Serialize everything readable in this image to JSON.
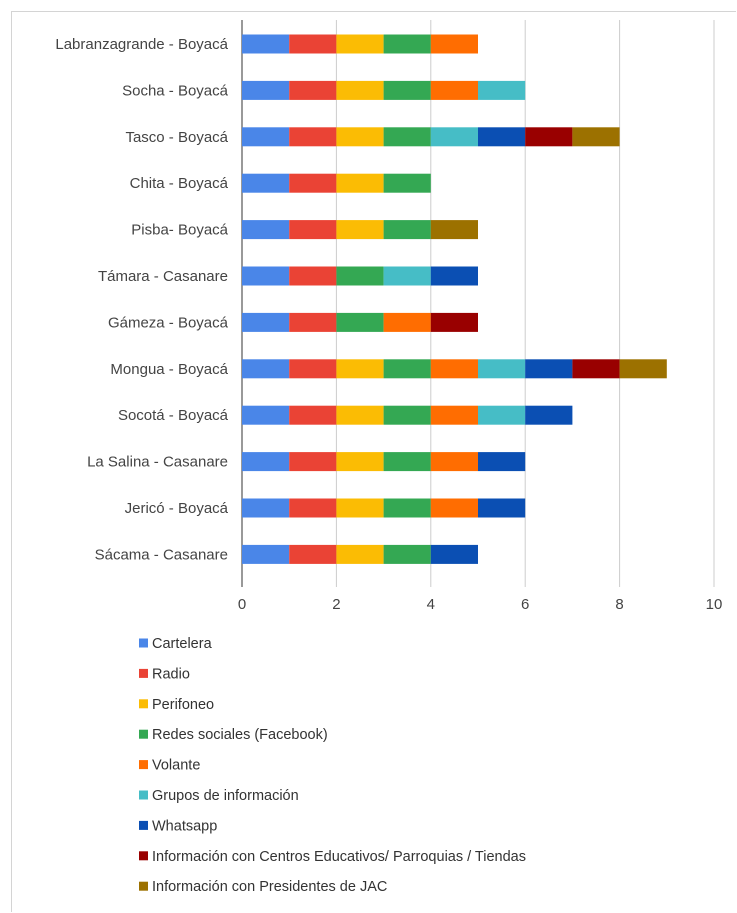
{
  "chart_data": {
    "type": "bar",
    "orientation": "horizontal",
    "stacked": true,
    "categories": [
      "Labranzagrande - Boyacá",
      "Socha - Boyacá",
      "Tasco - Boyacá",
      "Chita - Boyacá",
      "Pisba- Boyacá",
      "Támara - Casanare",
      "Gámeza - Boyacá",
      "Mongua - Boyacá",
      "Socotá - Boyacá",
      "La Salina - Casanare",
      "Jericó - Boyacá",
      "Sácama - Casanare"
    ],
    "series": [
      {
        "name": "Cartelera",
        "color": "#4a86e8",
        "values": [
          1,
          1,
          1,
          1,
          1,
          1,
          1,
          1,
          1,
          1,
          1,
          1
        ]
      },
      {
        "name": "Radio",
        "color": "#ea4335",
        "values": [
          1,
          1,
          1,
          1,
          1,
          1,
          1,
          1,
          1,
          1,
          1,
          1
        ]
      },
      {
        "name": "Perifoneo",
        "color": "#fbbc04",
        "values": [
          1,
          1,
          1,
          1,
          1,
          0,
          0,
          1,
          1,
          1,
          1,
          1
        ]
      },
      {
        "name": "Redes sociales (Facebook)",
        "color": "#34a853",
        "values": [
          1,
          1,
          1,
          1,
          1,
          1,
          1,
          1,
          1,
          1,
          1,
          1
        ]
      },
      {
        "name": "Volante",
        "color": "#ff6d01",
        "values": [
          1,
          1,
          0,
          0,
          0,
          0,
          1,
          1,
          1,
          1,
          1,
          0
        ]
      },
      {
        "name": "Grupos de información",
        "color": "#46bdc6",
        "values": [
          0,
          1,
          1,
          0,
          0,
          1,
          0,
          1,
          1,
          0,
          0,
          0
        ]
      },
      {
        "name": "Whatsapp",
        "color": "#0b4fb3",
        "values": [
          0,
          0,
          1,
          0,
          0,
          1,
          0,
          1,
          1,
          1,
          1,
          1
        ]
      },
      {
        "name": "Información con Centros Educativos/ Parroquias / Tiendas",
        "color": "#990000",
        "values": [
          0,
          0,
          1,
          0,
          0,
          0,
          1,
          1,
          0,
          0,
          0,
          0
        ]
      },
      {
        "name": "Información con Presidentes de JAC",
        "color": "#9c7100",
        "values": [
          0,
          0,
          1,
          0,
          1,
          0,
          0,
          1,
          0,
          0,
          0,
          0
        ]
      }
    ],
    "xlim": [
      0,
      10
    ],
    "xticks": [
      "0",
      "2",
      "4",
      "6",
      "8",
      "10"
    ],
    "grid": true,
    "legend_position": "bottom"
  }
}
